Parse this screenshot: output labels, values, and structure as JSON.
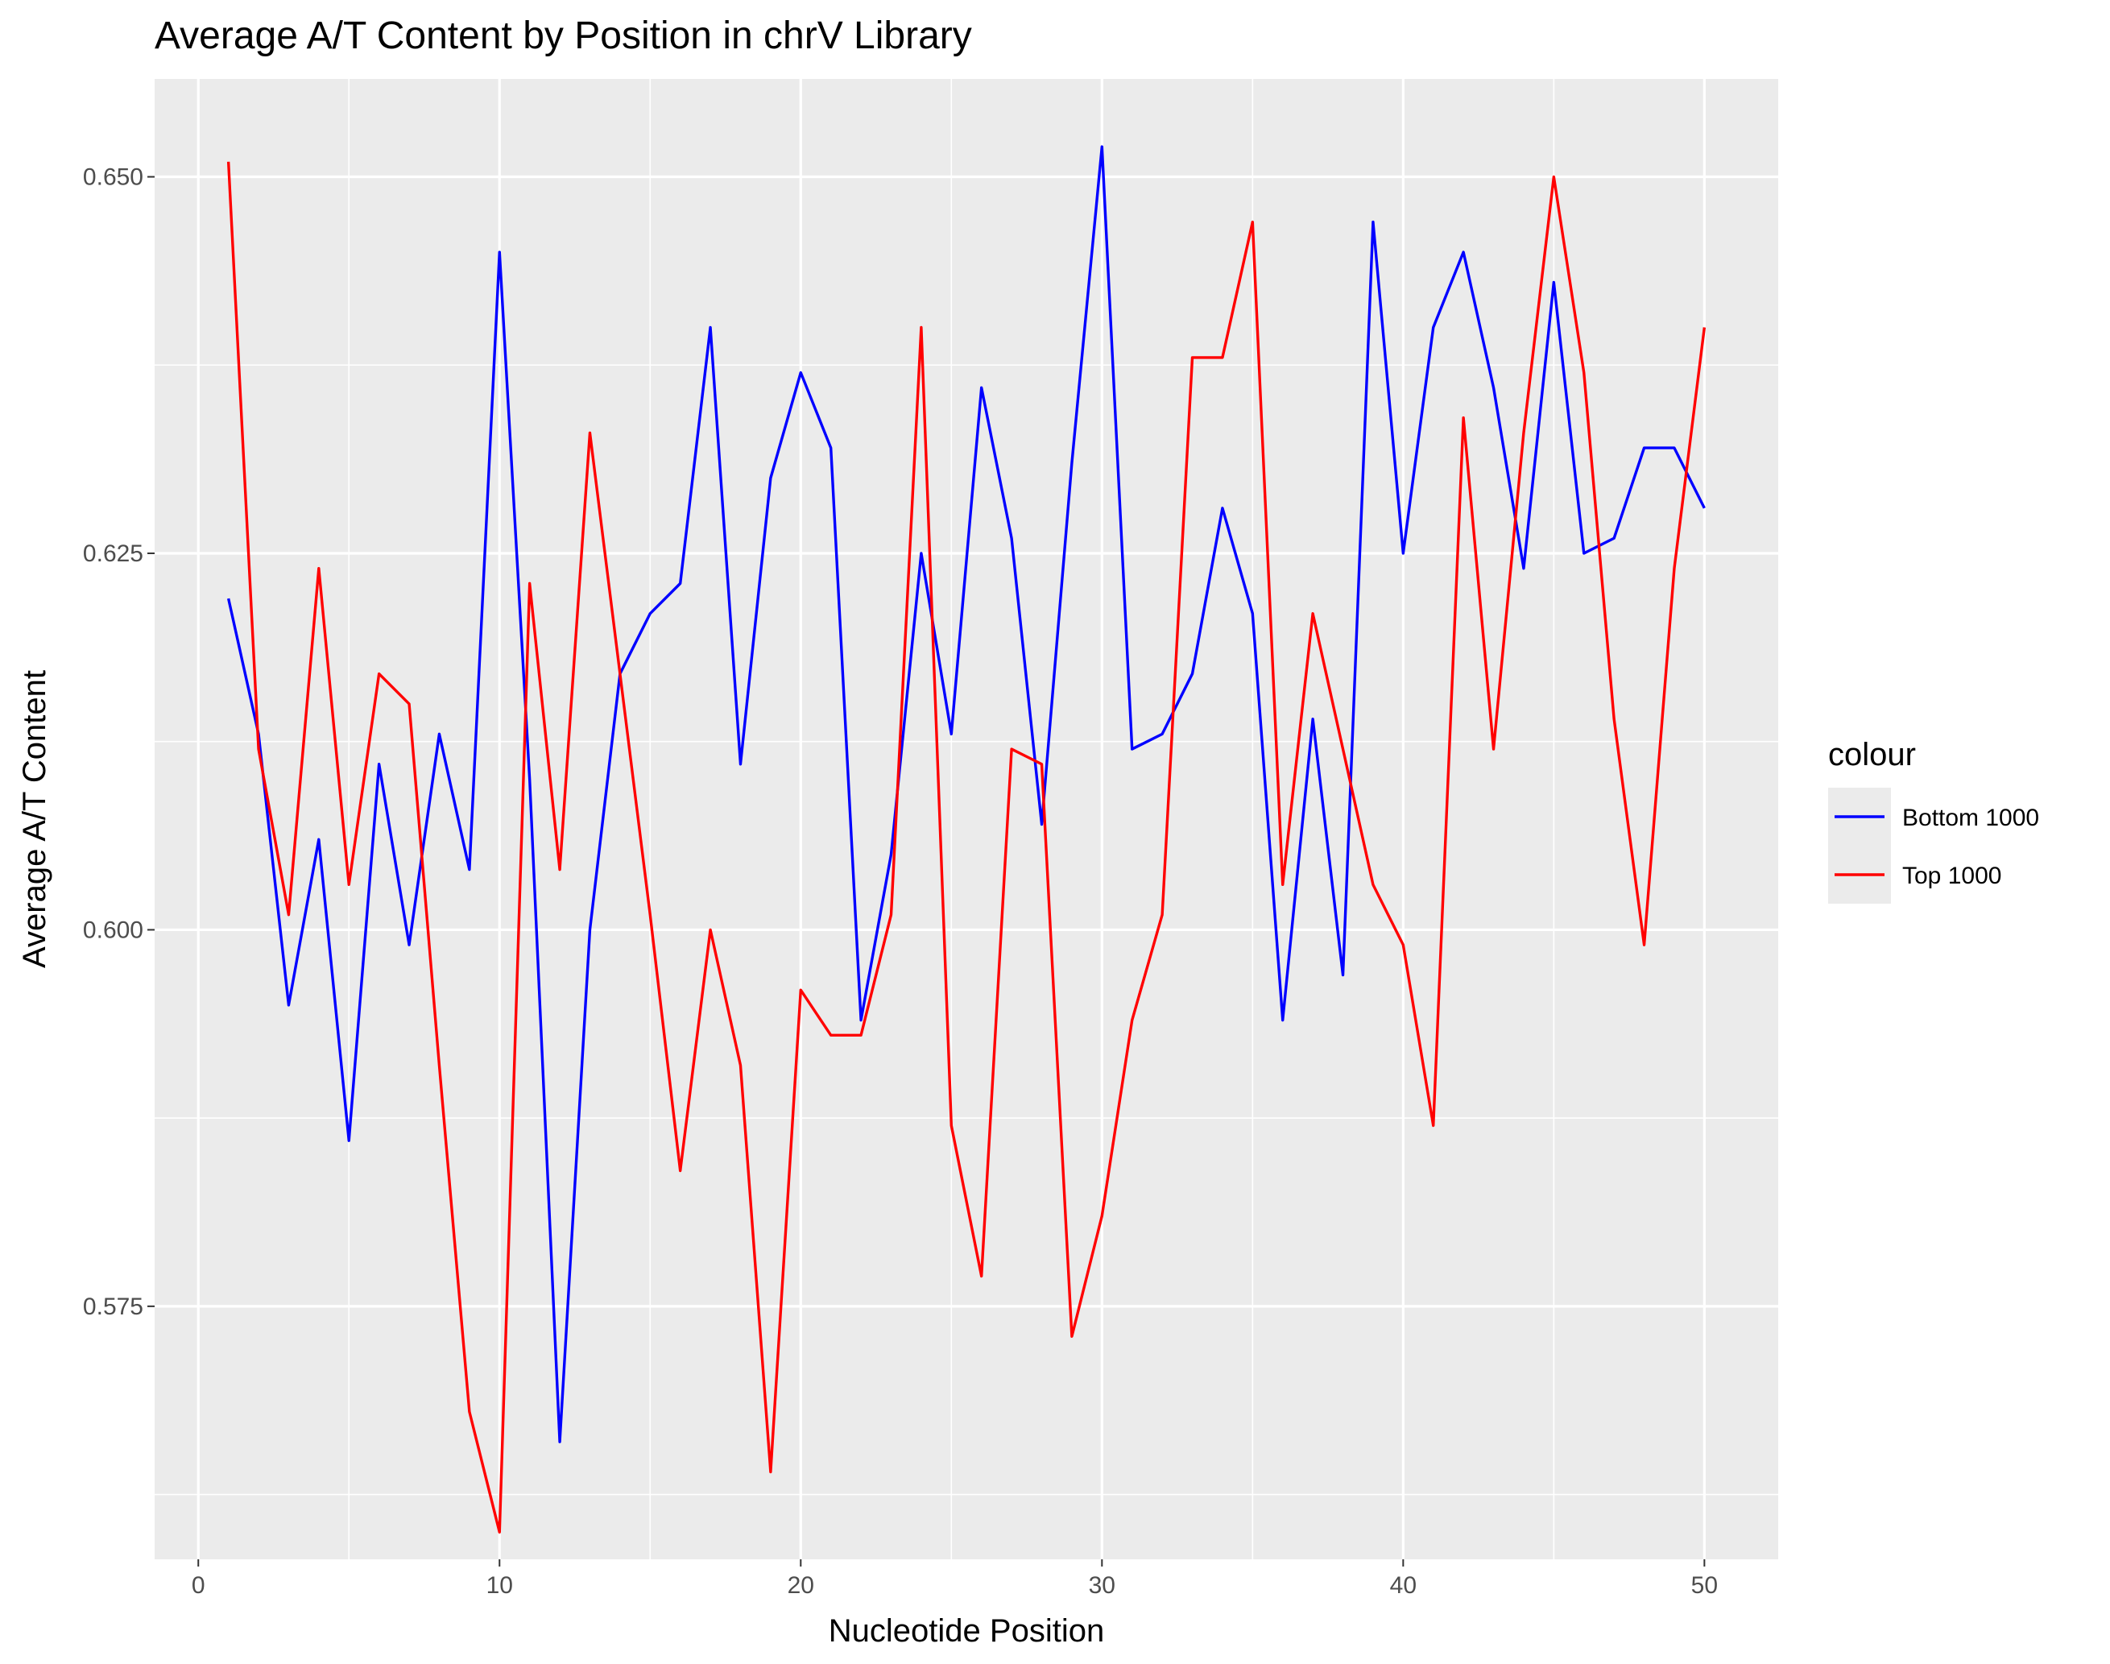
{
  "chart_data": {
    "type": "line",
    "title": "Average A/T Content by Position in chrV Library",
    "xlabel": "Nucleotide Position",
    "ylabel": "Average A/T Content",
    "xlim": [
      -1.45,
      52.45
    ],
    "ylim": [
      0.5582,
      0.6565
    ],
    "x_ticks": [
      0,
      10,
      20,
      30,
      40,
      50
    ],
    "x_tick_labels": [
      "0",
      "10",
      "20",
      "30",
      "40",
      "50"
    ],
    "y_ticks": [
      0.575,
      0.6,
      0.625,
      0.65
    ],
    "y_tick_labels": [
      "0.575",
      "0.600",
      "0.625",
      "0.650"
    ],
    "grid": true,
    "legend_title": "colour",
    "legend_position": "right",
    "x": [
      1,
      2,
      3,
      4,
      5,
      6,
      7,
      8,
      9,
      10,
      11,
      12,
      13,
      14,
      15,
      16,
      17,
      18,
      19,
      20,
      21,
      22,
      23,
      24,
      25,
      26,
      27,
      28,
      29,
      30,
      31,
      32,
      33,
      34,
      35,
      36,
      37,
      38,
      39,
      40,
      41,
      42,
      43,
      44,
      45,
      46,
      47,
      48,
      49,
      50
    ],
    "series": [
      {
        "name": "Bottom 1000",
        "color": "#0000ff",
        "values": [
          0.622,
          0.613,
          0.595,
          0.606,
          0.586,
          0.611,
          0.599,
          0.613,
          0.604,
          0.645,
          0.61,
          0.566,
          0.6,
          0.617,
          0.621,
          0.623,
          0.64,
          0.611,
          0.63,
          0.637,
          0.632,
          0.594,
          0.605,
          0.625,
          0.613,
          0.636,
          0.626,
          0.607,
          0.631,
          0.652,
          0.612,
          0.613,
          0.617,
          0.628,
          0.621,
          0.594,
          0.614,
          0.597,
          0.647,
          0.625,
          0.64,
          0.645,
          0.636,
          0.624,
          0.643,
          0.625,
          0.626,
          0.632,
          0.632,
          0.628
        ]
      },
      {
        "name": "Top 1000",
        "color": "#ff0000",
        "values": [
          0.651,
          0.612,
          0.601,
          0.624,
          0.603,
          0.617,
          0.615,
          0.591,
          0.568,
          0.56,
          0.623,
          0.604,
          0.633,
          0.617,
          0.601,
          0.584,
          0.6,
          0.591,
          0.564,
          0.596,
          0.593,
          0.593,
          0.601,
          0.64,
          0.587,
          0.577,
          0.612,
          0.611,
          0.573,
          0.581,
          0.594,
          0.601,
          0.638,
          0.638,
          0.647,
          0.603,
          0.621,
          0.612,
          0.603,
          0.599,
          0.587,
          0.634,
          0.612,
          0.633,
          0.65,
          0.637,
          0.614,
          0.599,
          0.624,
          0.64
        ]
      }
    ]
  }
}
